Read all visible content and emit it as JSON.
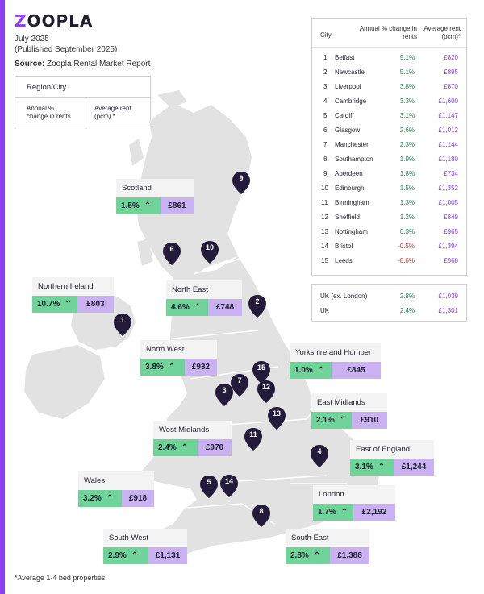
{
  "brand": {
    "logo_prefix": "Z",
    "logo_rest": "OOPLA"
  },
  "header": {
    "date": "July 2025",
    "published": "(Published September 2025)",
    "source_label": "Source:",
    "source_text": "Zoopla Rental Market Report"
  },
  "legend": {
    "title": "Region/City",
    "col1": "Annual % change in rents",
    "col2": "Average rent (pcm) *"
  },
  "regions": [
    {
      "name": "Scotland",
      "change": "1.5%",
      "rent": "£861"
    },
    {
      "name": "Northern Ireland",
      "change": "10.7%",
      "rent": "£803"
    },
    {
      "name": "North East",
      "change": "4.6%",
      "rent": "£748"
    },
    {
      "name": "North West",
      "change": "3.8%",
      "rent": "£932"
    },
    {
      "name": "Yorkshire and Humber",
      "change": "1.0%",
      "rent": "£845"
    },
    {
      "name": "East Midlands",
      "change": "2.1%",
      "rent": "£910"
    },
    {
      "name": "West Midlands",
      "change": "2.4%",
      "rent": "£970"
    },
    {
      "name": "East of England",
      "change": "3.1%",
      "rent": "£1,244"
    },
    {
      "name": "Wales",
      "change": "3.2%",
      "rent": "£918"
    },
    {
      "name": "London",
      "change": "1.7%",
      "rent": "£2,192"
    },
    {
      "name": "South West",
      "change": "2.9%",
      "rent": "£1,131"
    },
    {
      "name": "South East",
      "change": "2.8%",
      "rent": "£1,388"
    }
  ],
  "city_table": {
    "headers": {
      "city": "City",
      "change": "Annual % change in rents",
      "rent": "Average rent (pcm)*"
    },
    "rows": [
      {
        "rank": "1",
        "city": "Belfast",
        "change": "9.1%",
        "rent": "£820"
      },
      {
        "rank": "2",
        "city": "Newcastle",
        "change": "5.1%",
        "rent": "£895"
      },
      {
        "rank": "3",
        "city": "Liverpool",
        "change": "3.8%",
        "rent": "£870"
      },
      {
        "rank": "4",
        "city": "Cambridge",
        "change": "3.3%",
        "rent": "£1,600"
      },
      {
        "rank": "5",
        "city": "Cardiff",
        "change": "3.1%",
        "rent": "£1,147"
      },
      {
        "rank": "6",
        "city": "Glasgow",
        "change": "2.6%",
        "rent": "£1,012"
      },
      {
        "rank": "7",
        "city": "Manchester",
        "change": "2.3%",
        "rent": "£1,144"
      },
      {
        "rank": "8",
        "city": "Southampton",
        "change": "1.9%",
        "rent": "£1,180"
      },
      {
        "rank": "9",
        "city": "Aberdeen",
        "change": "1.8%",
        "rent": "£734"
      },
      {
        "rank": "10",
        "city": "Edinburgh",
        "change": "1.5%",
        "rent": "£1,352"
      },
      {
        "rank": "11",
        "city": "Birmingham",
        "change": "1.3%",
        "rent": "£1,005"
      },
      {
        "rank": "12",
        "city": "Sheffield",
        "change": "1.2%",
        "rent": "£849"
      },
      {
        "rank": "13",
        "city": "Nottingham",
        "change": "0.3%",
        "rent": "£965"
      },
      {
        "rank": "14",
        "city": "Bristol",
        "change": "-0.5%",
        "rent": "£1,394"
      },
      {
        "rank": "15",
        "city": "Leeds",
        "change": "-0.6%",
        "rent": "£968"
      }
    ]
  },
  "uk_summary": [
    {
      "label": "UK (ex. London)",
      "change": "2.8%",
      "rent": "£1,039"
    },
    {
      "label": "UK",
      "change": "2.4%",
      "rent": "£1,301"
    }
  ],
  "pins": [
    "1",
    "2",
    "3",
    "4",
    "5",
    "6",
    "7",
    "8",
    "9",
    "10",
    "11",
    "12",
    "13",
    "14",
    "15"
  ],
  "footnote": "*Average 1-4 bed properties",
  "colors": {
    "accent": "#8a3ff0",
    "change_bg": "#6fd39a",
    "rent_bg": "#c9b1f2",
    "map_land": "#e2e2e2",
    "pin": "#241b3a",
    "positive": "#1f8a4a",
    "negative": "#d02a2a"
  },
  "icons": {
    "trend": "arrow-up-icon",
    "pin": "map-pin-icon"
  }
}
